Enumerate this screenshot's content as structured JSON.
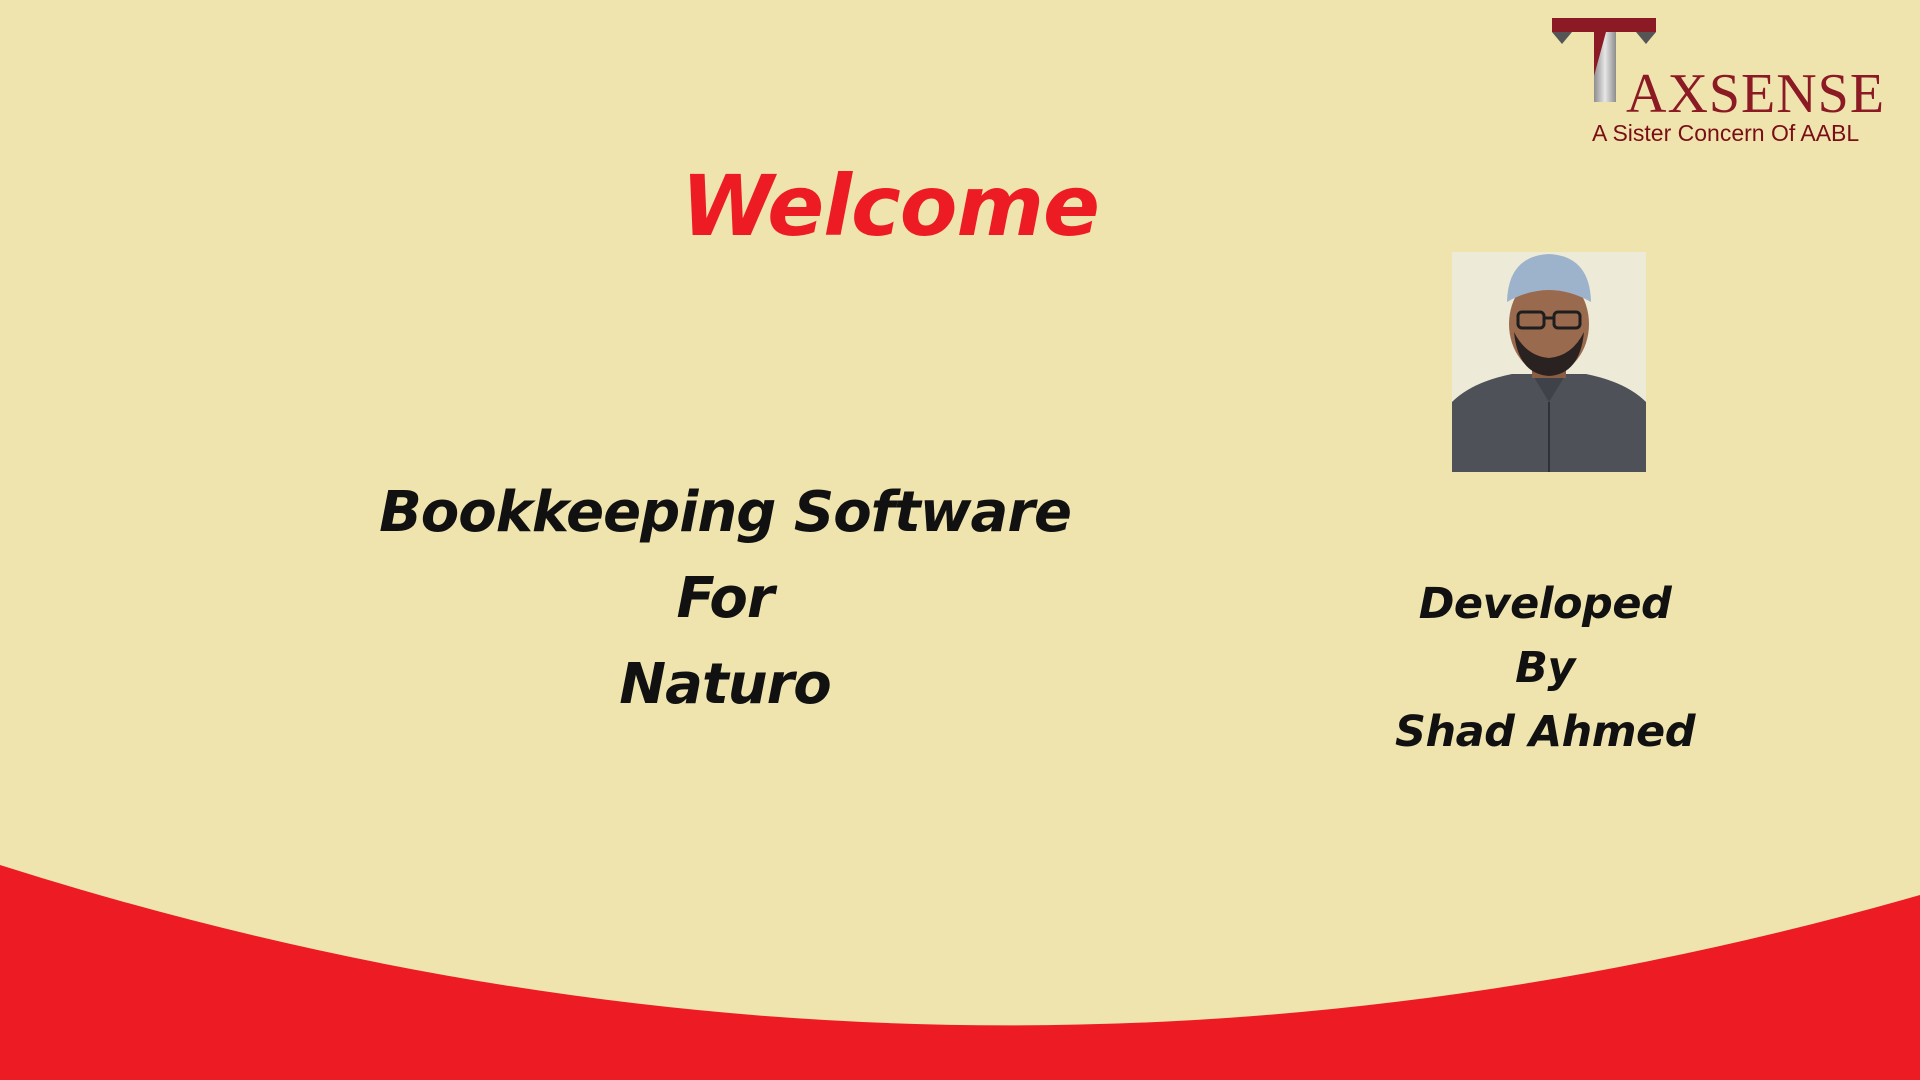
{
  "slide": {
    "welcome": "Welcome",
    "title_lines": [
      "Bookkeeping Software",
      "For",
      "Naturo"
    ],
    "developer_lines": [
      "Developed",
      "By",
      "Shad Ahmed"
    ]
  },
  "logo": {
    "brand_rest": "AXSENSE",
    "tagline": "A Sister Concern Of AABL"
  },
  "colors": {
    "background": "#EFE4AE",
    "accent_red": "#ED1C24",
    "logo_red": "#8B1A24",
    "text": "#111111"
  },
  "icons": {
    "logo_mark": "taxsense-t-logo-mark",
    "photo": "developer-portrait"
  }
}
